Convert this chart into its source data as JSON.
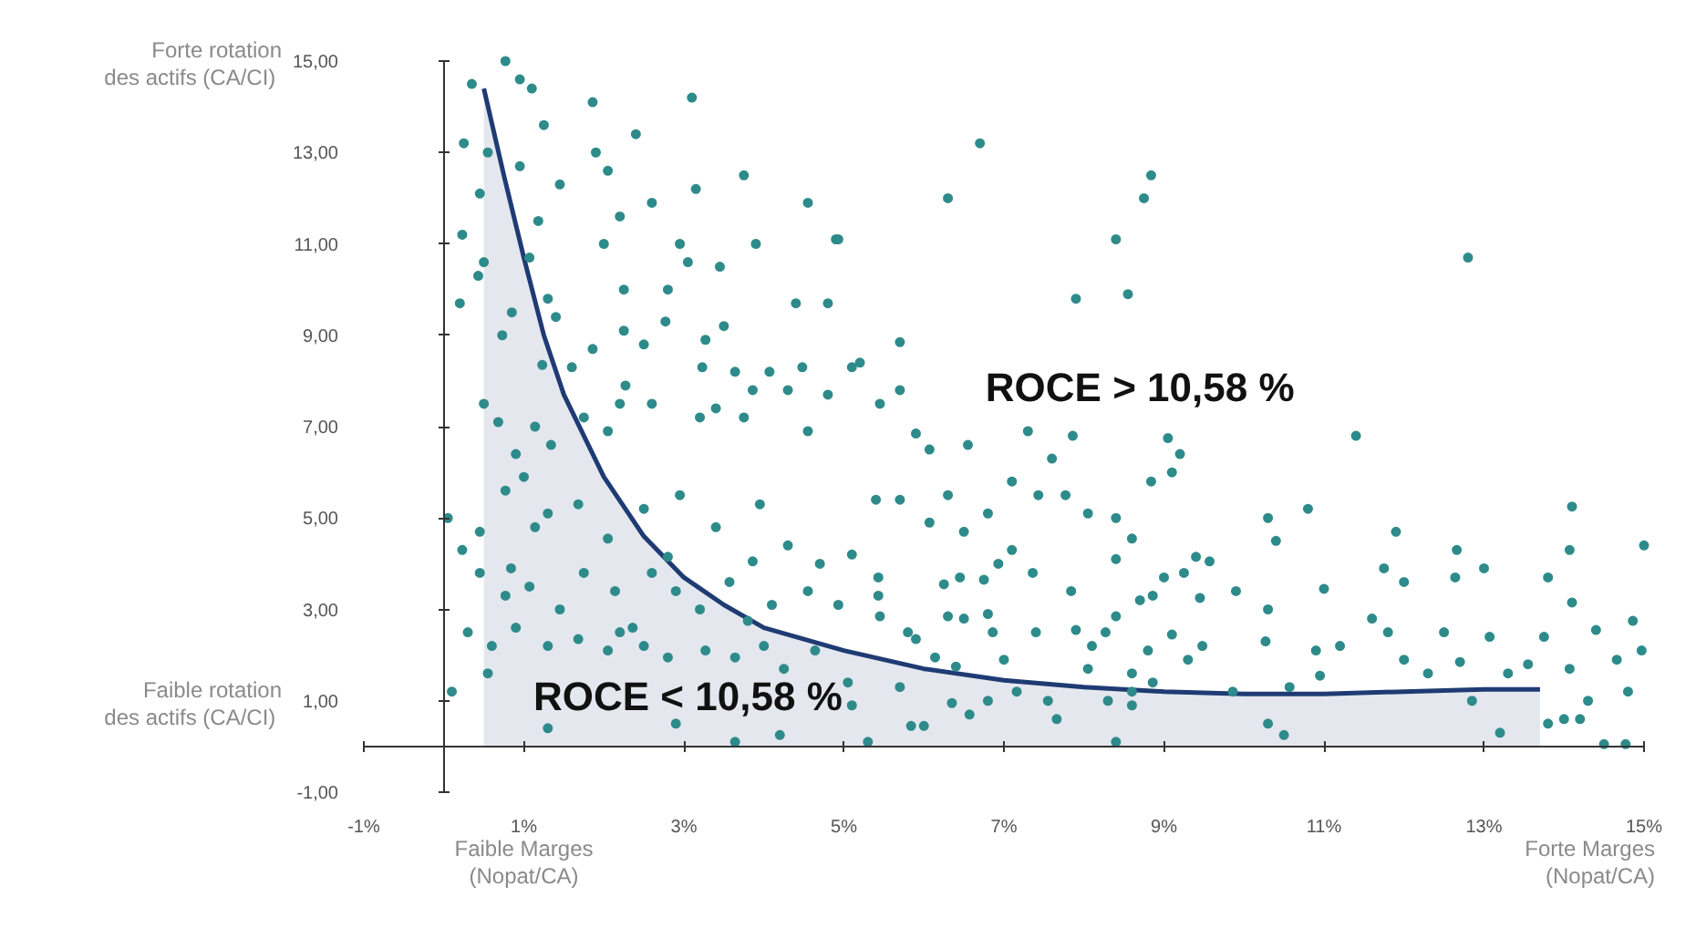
{
  "chart_data": {
    "type": "scatter",
    "grid": false,
    "xlim": [
      -1,
      15
    ],
    "ylim": [
      -1,
      15
    ],
    "xticks": [
      {
        "value": -1,
        "label": "-1%"
      },
      {
        "value": 1,
        "label": "1%"
      },
      {
        "value": 3,
        "label": "3%"
      },
      {
        "value": 5,
        "label": "5%"
      },
      {
        "value": 7,
        "label": "7%"
      },
      {
        "value": 9,
        "label": "9%"
      },
      {
        "value": 11,
        "label": "11%"
      },
      {
        "value": 13,
        "label": "13%"
      },
      {
        "value": 15,
        "label": "15%"
      }
    ],
    "yticks": [
      {
        "value": -1,
        "label": "-1,00"
      },
      {
        "value": 1,
        "label": "1,00"
      },
      {
        "value": 3,
        "label": "3,00"
      },
      {
        "value": 5,
        "label": "5,00"
      },
      {
        "value": 7,
        "label": "7,00"
      },
      {
        "value": 9,
        "label": "9,00"
      },
      {
        "value": 11,
        "label": "11,00"
      },
      {
        "value": 13,
        "label": "13,00"
      },
      {
        "value": 15,
        "label": "15,00"
      }
    ],
    "annotations": [
      "ROCE > 10,58 %",
      "ROCE < 10,58 %",
      "Forte rotation\ndes actifs  (CA/CI)",
      "Faible rotation\ndes actifs  (CA/CI)",
      "Faible Marges\n(Nopat/CA)",
      "Forte Marges\n(Nopat/CA)"
    ],
    "series": [
      {
        "type": "area",
        "color": "#1f3b73",
        "x": [
          0.5,
          0.75,
          1,
          1.25,
          1.5,
          2,
          2.5,
          3,
          3.5,
          4,
          5,
          6,
          7,
          8,
          9,
          10,
          11,
          12,
          13,
          13.7
        ],
        "values": [
          14.4,
          12.5,
          10.7,
          9,
          7.7,
          5.9,
          4.6,
          3.7,
          3.1,
          2.6,
          2.1,
          1.7,
          1.45,
          1.3,
          1.2,
          1.15,
          1.15,
          1.2,
          1.25,
          1.25
        ]
      },
      {
        "color": "#2e8b8b",
        "x": [
          0.77,
          0.35,
          0.95,
          1.1,
          3.1,
          1.86,
          1.25,
          2.4,
          0.25,
          0.55,
          0.95,
          1.9,
          2.05,
          3.75,
          0.45,
          1.45,
          3.15,
          2.6,
          4.55,
          2.2,
          0.23,
          1.18,
          4.9,
          2.0,
          3.9,
          2.95,
          3.05,
          3.45,
          1.07,
          0.5,
          0.43,
          2.25,
          2.8,
          1.3,
          4.4,
          4.8,
          0.2,
          0.85,
          1.4,
          2.77,
          2.25,
          0.73,
          2.5,
          3.5,
          3.27,
          1.23,
          1.6,
          1.86,
          3.23,
          3.64,
          4.07,
          4.48,
          5.1,
          2.27,
          3.86,
          4.3,
          4.8,
          2.2,
          0.5,
          0.68,
          2.6,
          3.4,
          3.75,
          4.55,
          1.14,
          1.75,
          2.05,
          3.2,
          1.34,
          0.9,
          6.7,
          6.3,
          8.84,
          8.75,
          8.4,
          7.9,
          8.55,
          12.8,
          5.7,
          5.2,
          5.7,
          5.45,
          5.9,
          6.07,
          6.55,
          7.3,
          7.86,
          9.05,
          9.2,
          11.4,
          4.93,
          0.05,
          0.23,
          0.45,
          0.77,
          1.0,
          1.3,
          1.68,
          2.05,
          2.5,
          2.95,
          3.4,
          3.95,
          4.3,
          4.7,
          0.45,
          0.77,
          1.07,
          1.45,
          1.75,
          2.14,
          2.36,
          2.6,
          2.9,
          3.2,
          3.57,
          3.8,
          4.1,
          4.55,
          4.93,
          0.3,
          0.6,
          0.9,
          1.3,
          1.68,
          2.05,
          2.2,
          2.5,
          2.8,
          3.27,
          3.64,
          4.0,
          4.25,
          4.64,
          0.1,
          0.55,
          1.3,
          2.9,
          3.64,
          4.2,
          5.1,
          1.14,
          2.8,
          0.84,
          3.86,
          5.4,
          5.7,
          6.07,
          6.3,
          6.5,
          6.8,
          7.1,
          7.43,
          7.6,
          7.77,
          8.05,
          8.4,
          8.6,
          8.84,
          9.1,
          10.3,
          10.4,
          10.8,
          11.9,
          14.1,
          14.07,
          15.0,
          12.66,
          13.0,
          11.75,
          12.0,
          12.64,
          13.8,
          14.1,
          14.4,
          14.86,
          14.97,
          14.66,
          14.8,
          14.5,
          14.77,
          14.3,
          14.2,
          13.8,
          14.0,
          14.07,
          13.75,
          13.55,
          13.2,
          13.3,
          13.07,
          12.7,
          12.85,
          12.5,
          12.3,
          12.0,
          11.8,
          11.6,
          11.2,
          10.95,
          10.9,
          11.0,
          10.57,
          10.3,
          10.5,
          10.27,
          10.3,
          9.9,
          9.86,
          9.48,
          9.3,
          9.45,
          9.4,
          9.57,
          9.25,
          9.0,
          8.86,
          8.7,
          8.8,
          9.1,
          8.4,
          8.4,
          8.27,
          8.1,
          7.9,
          7.84,
          8.6,
          8.6,
          8.86,
          8.4,
          8.3,
          8.6,
          8.05,
          7.66,
          7.55,
          7.36,
          7.1,
          6.93,
          6.8,
          6.86,
          7.0,
          6.8,
          6.57,
          6.35,
          7.16,
          7.4,
          5.84,
          6.0,
          5.3,
          6.3,
          6.5,
          6.25,
          6.45,
          6.75,
          5.43,
          5.43,
          5.8,
          5.9,
          6.14,
          6.4,
          5.7,
          5.05,
          5.45,
          5.1
        ],
        "values": [
          15.0,
          14.5,
          14.6,
          14.4,
          14.2,
          14.1,
          13.6,
          13.4,
          13.2,
          13.0,
          12.7,
          13.0,
          12.6,
          12.5,
          12.1,
          12.3,
          12.2,
          11.9,
          11.9,
          11.6,
          11.2,
          11.5,
          11.1,
          11.0,
          11.0,
          11.0,
          10.6,
          10.5,
          10.7,
          10.6,
          10.3,
          10.0,
          10.0,
          9.8,
          9.7,
          9.7,
          9.7,
          9.5,
          9.4,
          9.3,
          9.1,
          9.0,
          8.8,
          9.2,
          8.9,
          8.35,
          8.3,
          8.7,
          8.3,
          8.2,
          8.2,
          8.3,
          8.3,
          7.9,
          7.8,
          7.8,
          7.7,
          7.5,
          7.5,
          7.1,
          7.5,
          7.4,
          7.2,
          6.9,
          7.0,
          7.2,
          6.9,
          7.2,
          6.6,
          6.4,
          13.2,
          12.0,
          12.5,
          12.0,
          11.1,
          9.8,
          9.9,
          10.7,
          8.85,
          8.4,
          7.8,
          7.5,
          6.85,
          6.5,
          6.6,
          6.9,
          6.8,
          6.75,
          6.4,
          6.8,
          11.1,
          5.0,
          4.3,
          4.7,
          5.6,
          5.9,
          5.1,
          5.3,
          4.55,
          5.2,
          5.5,
          4.8,
          5.3,
          4.4,
          4.0,
          3.8,
          3.3,
          3.5,
          3.0,
          3.8,
          3.4,
          2.6,
          3.8,
          3.4,
          3.0,
          3.6,
          2.75,
          3.1,
          3.4,
          3.1,
          2.5,
          2.2,
          2.6,
          2.2,
          2.35,
          2.1,
          2.5,
          2.2,
          1.95,
          2.1,
          1.95,
          2.2,
          1.7,
          2.1,
          1.2,
          1.6,
          0.4,
          0.5,
          0.1,
          0.25,
          0.9,
          4.8,
          4.15,
          3.9,
          4.05,
          5.4,
          5.4,
          4.9,
          5.5,
          4.7,
          5.1,
          5.8,
          5.5,
          6.3,
          5.5,
          5.1,
          5.0,
          4.55,
          5.8,
          6.0,
          5.0,
          4.5,
          5.2,
          4.7,
          5.25,
          4.3,
          4.4,
          4.3,
          3.9,
          3.9,
          3.6,
          3.7,
          3.7,
          3.15,
          2.55,
          2.75,
          2.1,
          1.9,
          1.2,
          0.05,
          0.05,
          1.0,
          0.6,
          0.5,
          0.6,
          1.7,
          2.4,
          1.8,
          0.3,
          1.6,
          2.4,
          1.85,
          1.0,
          2.5,
          1.6,
          1.9,
          2.5,
          2.8,
          2.2,
          1.55,
          2.1,
          3.45,
          1.3,
          0.5,
          0.25,
          2.3,
          3.0,
          3.4,
          1.2,
          2.2,
          1.9,
          3.25,
          4.15,
          4.05,
          3.8,
          3.7,
          3.3,
          3.2,
          2.1,
          2.45,
          4.1,
          2.85,
          2.5,
          2.2,
          2.55,
          3.4,
          1.6,
          1.2,
          1.4,
          0.1,
          1.0,
          0.9,
          1.7,
          0.6,
          1.0,
          3.8,
          4.3,
          4.0,
          2.9,
          2.5,
          1.9,
          1.0,
          0.7,
          0.95,
          1.2,
          2.5,
          0.45,
          0.45,
          0.1,
          2.85,
          2.8,
          3.55,
          3.7,
          3.65,
          3.7,
          3.3,
          2.5,
          2.35,
          1.95,
          1.75,
          1.3,
          1.4,
          2.85,
          4.2
        ]
      }
    ]
  }
}
